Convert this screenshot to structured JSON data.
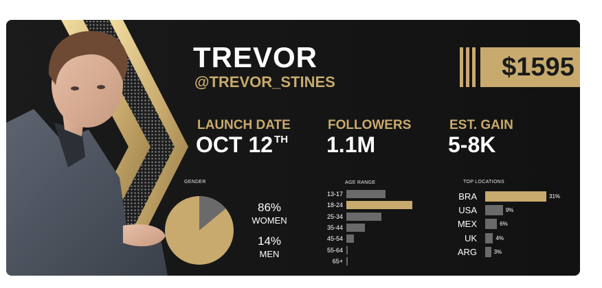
{
  "profile": {
    "name": "TREVOR",
    "handle": "@TREVOR_STINES",
    "price": "$1595"
  },
  "stats": {
    "launch": {
      "label": "LAUNCH DATE",
      "value": "OCT 12",
      "suffix": "TH"
    },
    "followers": {
      "label": "FOLLOWERS",
      "value": "1.1M"
    },
    "gain": {
      "label": "EST. GAIN",
      "value": "5-8K"
    }
  },
  "gender": {
    "title": "GENDER",
    "women": {
      "pct": "86%",
      "label": "WOMEN",
      "value": 86
    },
    "men": {
      "pct": "14%",
      "label": "MEN",
      "value": 14
    }
  },
  "age": {
    "title": "AGE RANGE",
    "items": [
      {
        "label": "13-17",
        "value": 58
      },
      {
        "label": "18-24",
        "value": 97
      },
      {
        "label": "25-34",
        "value": 52
      },
      {
        "label": "35-44",
        "value": 27
      },
      {
        "label": "45-54",
        "value": 11
      },
      {
        "label": "55-64",
        "value": 2
      },
      {
        "label": "65+",
        "value": 1
      }
    ]
  },
  "locations": {
    "title": "TOP LOCATIONS",
    "items": [
      {
        "label": "BRA",
        "value": "31%",
        "pct": 31
      },
      {
        "label": "USA",
        "value": "9%",
        "pct": 9
      },
      {
        "label": "MEX",
        "value": "6%",
        "pct": 6
      },
      {
        "label": "UK",
        "value": "4%",
        "pct": 4
      },
      {
        "label": "ARG",
        "value": "3%",
        "pct": 3
      }
    ]
  },
  "colors": {
    "gold": "#c8aa6e",
    "gray": "#6a6a6a"
  }
}
